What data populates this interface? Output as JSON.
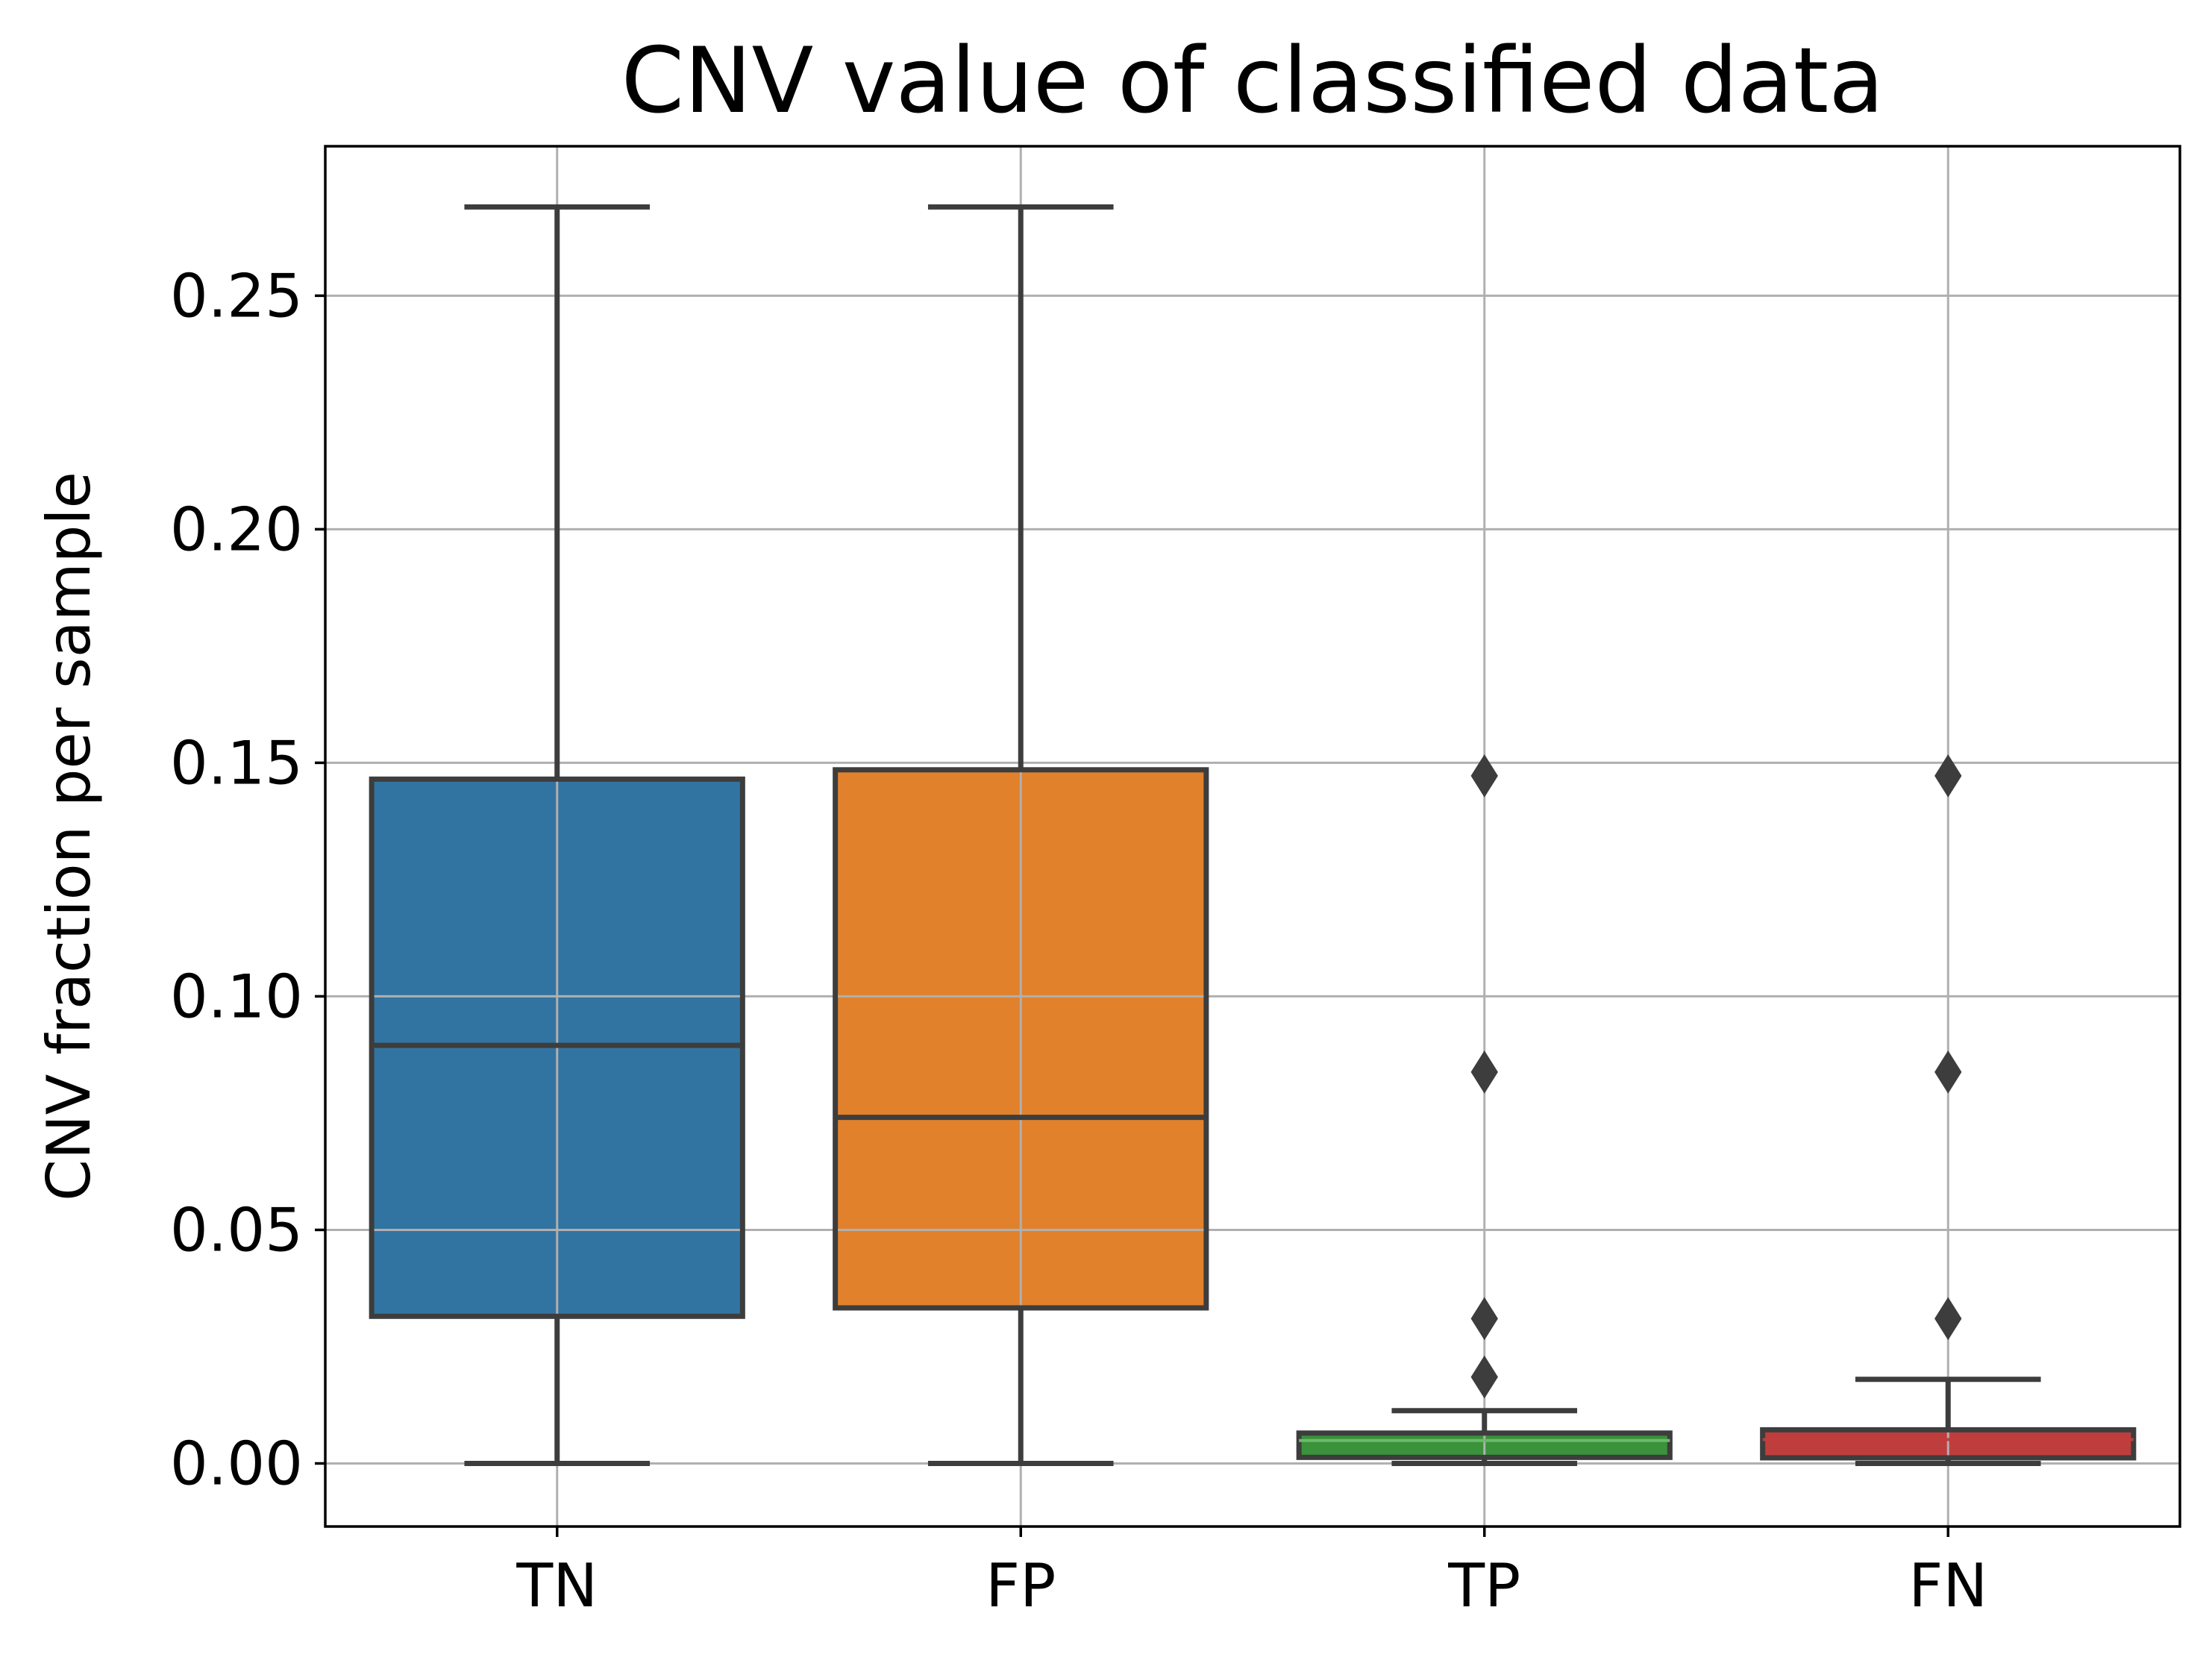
{
  "chart_data": {
    "type": "box",
    "title": "CNV value of classified data",
    "xlabel": "",
    "ylabel": "CNV fraction per sample",
    "ylim": [
      -0.0135,
      0.282
    ],
    "grid": true,
    "categories": [
      "TN",
      "FP",
      "TP",
      "FN"
    ],
    "y_ticks": [
      0.0,
      0.05,
      0.1,
      0.15,
      0.2,
      0.25
    ],
    "y_tick_labels": [
      "0.00",
      "0.05",
      "0.10",
      "0.15",
      "0.20",
      "0.25"
    ],
    "boxes": [
      {
        "category": "TN",
        "color": "#3274a1",
        "whisker_low": 0.0,
        "q1": 0.0315,
        "median": 0.0895,
        "q3": 0.1465,
        "whisker_high": 0.269,
        "outliers": []
      },
      {
        "category": "FP",
        "color": "#e1812c",
        "whisker_low": 0.0,
        "q1": 0.0333,
        "median": 0.0741,
        "q3": 0.1485,
        "whisker_high": 0.269,
        "outliers": []
      },
      {
        "category": "TP",
        "color": "#3a923a",
        "whisker_low": 0.0,
        "q1": 0.0013,
        "median": 0.0049,
        "q3": 0.0065,
        "whisker_high": 0.0113,
        "outliers": [
          0.0185,
          0.031,
          0.0838,
          0.1472
        ]
      },
      {
        "category": "FN",
        "color": "#c03d3e",
        "whisker_low": 0.0,
        "q1": 0.0012,
        "median": 0.0051,
        "q3": 0.0072,
        "whisker_high": 0.018,
        "outliers": [
          0.031,
          0.0838,
          0.1472
        ]
      }
    ]
  },
  "style": {
    "box_edge_color": "#3d3d3d",
    "grid_color": "#b0b0b0",
    "axis_color": "#000000"
  }
}
